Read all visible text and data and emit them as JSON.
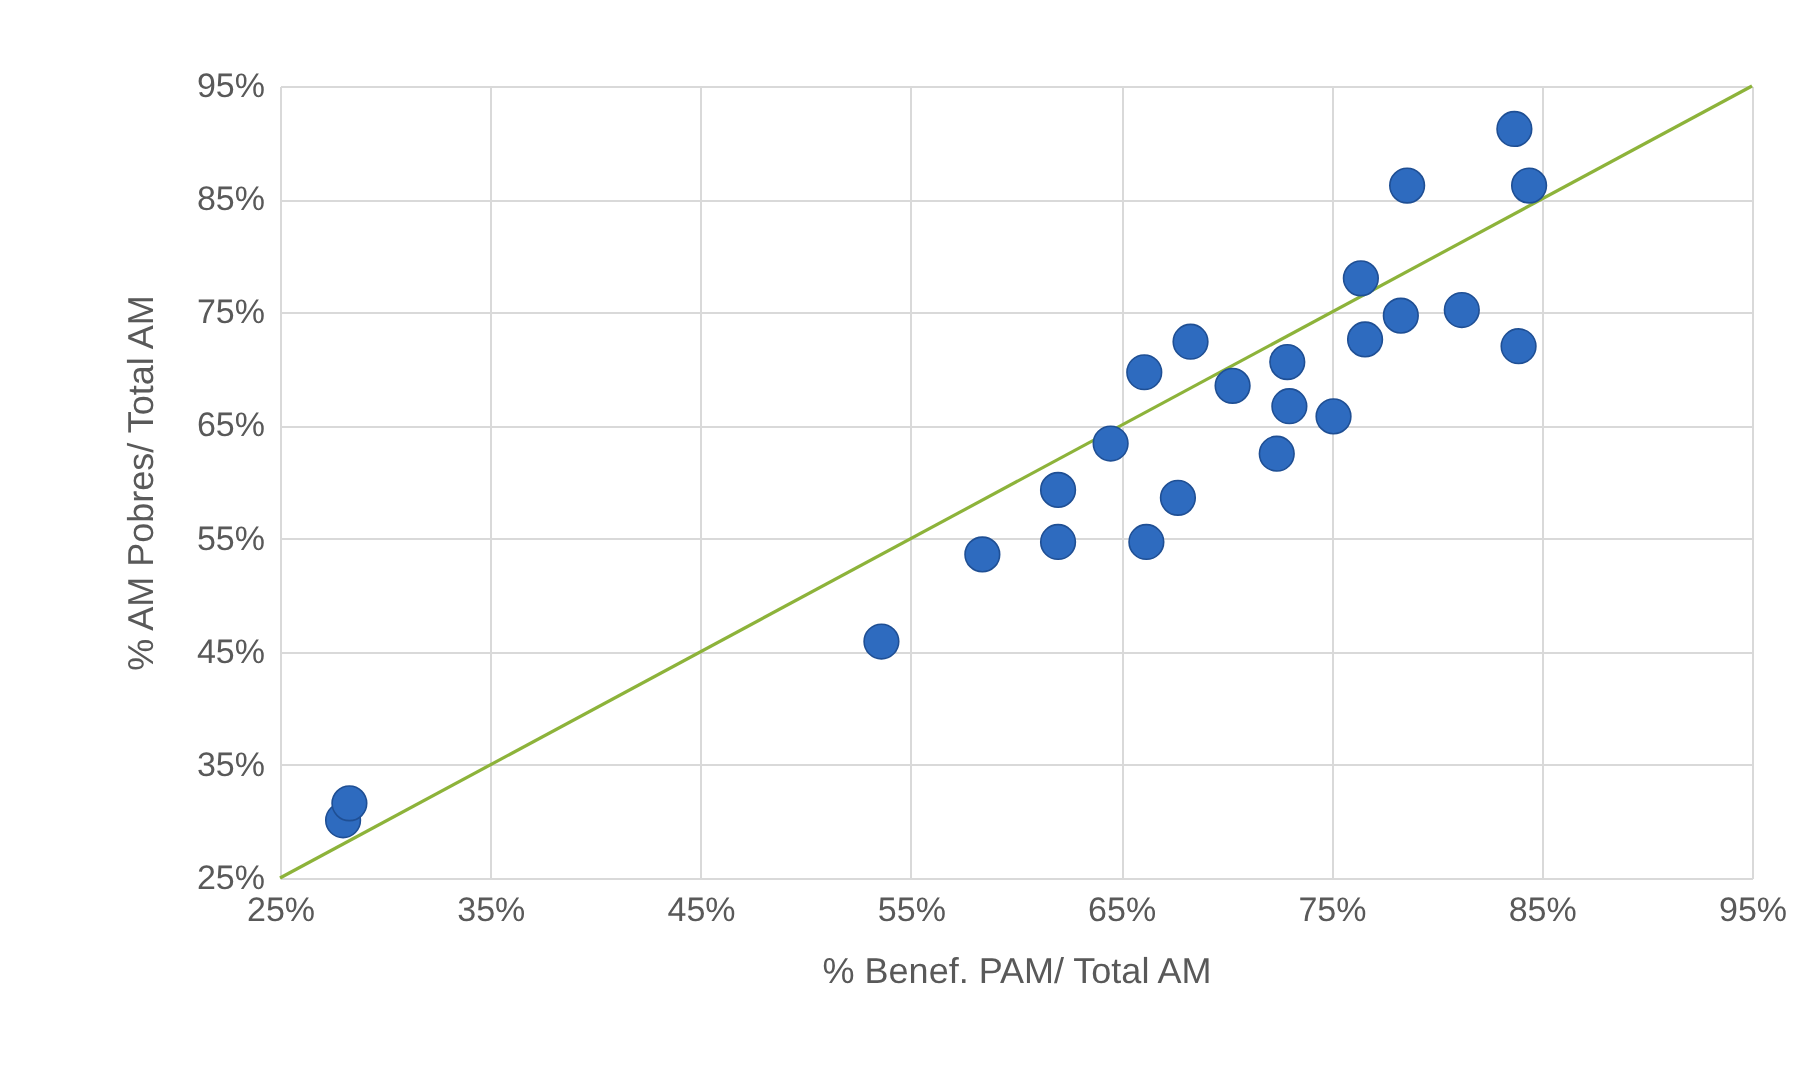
{
  "chart_data": {
    "type": "scatter",
    "xlabel": "% Benef. PAM/ Total AM",
    "ylabel": "% AM Pobres/ Total AM",
    "xlim": [
      25,
      95
    ],
    "ylim": [
      25,
      95
    ],
    "xticks": [
      {
        "value": 25,
        "label": "25%"
      },
      {
        "value": 35,
        "label": "35%"
      },
      {
        "value": 45,
        "label": "45%"
      },
      {
        "value": 55,
        "label": "55%"
      },
      {
        "value": 65,
        "label": "65%"
      },
      {
        "value": 75,
        "label": "75%"
      },
      {
        "value": 85,
        "label": "85%"
      },
      {
        "value": 95,
        "label": "95%"
      }
    ],
    "yticks": [
      {
        "value": 25,
        "label": "25%"
      },
      {
        "value": 35,
        "label": "35%"
      },
      {
        "value": 45,
        "label": "45%"
      },
      {
        "value": 55,
        "label": "55%"
      },
      {
        "value": 65,
        "label": "65%"
      },
      {
        "value": 75,
        "label": "75%"
      },
      {
        "value": 85,
        "label": "85%"
      },
      {
        "value": 95,
        "label": "95%"
      }
    ],
    "grid": true,
    "marker": "circle",
    "series": [
      {
        "type": "line",
        "color": "#8db33a",
        "marker": "none",
        "x": [
          25,
          95
        ],
        "values": [
          25,
          95
        ]
      },
      {
        "color": "#2e6bbf",
        "x": [
          28.0,
          28.3,
          53.6,
          58.4,
          62.0,
          62.0,
          64.5,
          66.1,
          66.2,
          67.7,
          68.3,
          70.3,
          72.4,
          72.9,
          73.0,
          75.1,
          76.4,
          76.6,
          78.3,
          78.6,
          81.2,
          83.7,
          84.4,
          83.9
        ],
        "values": [
          30.1,
          31.6,
          45.9,
          53.6,
          59.3,
          54.7,
          63.4,
          69.7,
          54.7,
          58.6,
          72.4,
          68.5,
          62.5,
          70.6,
          66.7,
          65.8,
          78.0,
          72.6,
          74.7,
          86.2,
          75.2,
          91.2,
          86.2,
          72.0
        ]
      }
    ]
  }
}
